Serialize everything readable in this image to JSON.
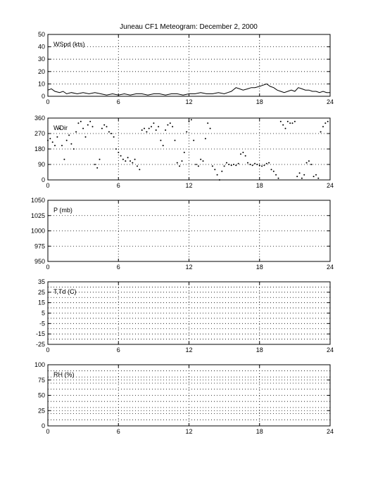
{
  "figure": {
    "title": "Juneau CF1 Meteogram:  December  2, 2000"
  },
  "chart_data": [
    {
      "type": "line",
      "label": "WSpd (kts)",
      "xlim": [
        0,
        24
      ],
      "ylim": [
        0,
        50
      ],
      "xticks": [
        0,
        6,
        12,
        18,
        24
      ],
      "yticks": [
        0,
        10,
        20,
        30,
        40,
        50
      ],
      "grid": true,
      "series": [
        {
          "color": "#000000",
          "x": [
            0,
            0.3,
            0.6,
            1,
            1.3,
            1.6,
            2,
            2.5,
            3,
            3.5,
            4,
            4.5,
            5,
            5.5,
            6,
            6.5,
            7,
            7.5,
            8,
            8.5,
            9,
            9.5,
            10,
            10.5,
            11,
            11.5,
            12,
            12.5,
            13,
            13.5,
            14,
            14.5,
            15,
            15.3,
            15.6,
            16,
            16.3,
            16.6,
            17,
            17.3,
            17.6,
            18,
            18.3,
            18.6,
            18.9,
            19.2,
            19.5,
            19.8,
            20.1,
            20.4,
            20.7,
            21,
            21.3,
            21.6,
            21.9,
            22.2,
            22.5,
            22.8,
            23.1,
            23.4,
            23.7,
            24
          ],
          "y": [
            5,
            6,
            4,
            3,
            4,
            2,
            3,
            2,
            3,
            2,
            3,
            2,
            1,
            2,
            1,
            2,
            1,
            2,
            2,
            1,
            2,
            2,
            1,
            2,
            2,
            1,
            2,
            2,
            3,
            2,
            2,
            3,
            2,
            3,
            4,
            7,
            6,
            5,
            6,
            7,
            7,
            8,
            9,
            10,
            8,
            7,
            5,
            4,
            3,
            4,
            5,
            4,
            7,
            6,
            5,
            5,
            4,
            4,
            3,
            4,
            3,
            3
          ]
        }
      ]
    },
    {
      "type": "scatter",
      "label": "WDir",
      "xlim": [
        0,
        24
      ],
      "ylim": [
        0,
        360
      ],
      "xticks": [
        0,
        6,
        12,
        18,
        24
      ],
      "yticks": [
        0,
        90,
        180,
        270,
        360
      ],
      "grid": true,
      "series": [
        {
          "color": "#000000",
          "x": [
            0.0,
            0.2,
            0.4,
            0.6,
            0.8,
            1.0,
            1.2,
            1.4,
            1.6,
            1.8,
            2.0,
            2.2,
            2.4,
            2.6,
            2.8,
            3.0,
            3.2,
            3.4,
            3.6,
            3.8,
            4.0,
            4.2,
            4.4,
            4.6,
            4.8,
            5.0,
            5.2,
            5.4,
            5.6,
            5.8,
            6.0,
            6.2,
            6.4,
            6.6,
            6.8,
            7.0,
            7.2,
            7.4,
            7.6,
            7.8,
            8.0,
            8.2,
            8.4,
            8.6,
            8.8,
            9.0,
            9.2,
            9.4,
            9.6,
            9.8,
            10.0,
            10.2,
            10.4,
            10.6,
            10.8,
            11.0,
            11.2,
            11.4,
            11.6,
            11.8,
            12.0,
            12.2,
            12.4,
            12.6,
            12.8,
            13.0,
            13.2,
            13.4,
            13.6,
            13.8,
            14.0,
            14.2,
            14.4,
            14.6,
            14.8,
            15.0,
            15.2,
            15.4,
            15.6,
            15.8,
            16.0,
            16.2,
            16.4,
            16.6,
            16.8,
            17.0,
            17.2,
            17.4,
            17.6,
            17.8,
            18.0,
            18.2,
            18.4,
            18.6,
            18.8,
            19.0,
            19.2,
            19.4,
            19.6,
            19.8,
            20.0,
            20.2,
            20.4,
            20.6,
            20.8,
            21.0,
            21.2,
            21.4,
            21.6,
            21.8,
            22.0,
            22.2,
            22.4,
            22.6,
            22.8,
            23.0,
            23.2,
            23.4,
            23.6,
            23.8
          ],
          "y": [
            230,
            240,
            220,
            200,
            250,
            300,
            200,
            120,
            230,
            260,
            210,
            180,
            280,
            330,
            340,
            300,
            250,
            320,
            340,
            310,
            90,
            70,
            120,
            300,
            320,
            310,
            280,
            270,
            250,
            180,
            160,
            140,
            120,
            110,
            130,
            110,
            100,
            120,
            80,
            60,
            290,
            300,
            280,
            300,
            310,
            330,
            290,
            310,
            230,
            200,
            290,
            320,
            330,
            310,
            230,
            100,
            80,
            110,
            160,
            280,
            340,
            350,
            230,
            90,
            80,
            120,
            110,
            240,
            330,
            300,
            80,
            60,
            30,
            0,
            50,
            80,
            100,
            90,
            85,
            90,
            85,
            95,
            150,
            160,
            140,
            100,
            90,
            85,
            95,
            90,
            85,
            80,
            85,
            95,
            100,
            60,
            50,
            30,
            10,
            340,
            320,
            300,
            340,
            330,
            330,
            340,
            20,
            40,
            10,
            30,
            100,
            110,
            90,
            20,
            30,
            10,
            280,
            310,
            330,
            340
          ]
        }
      ]
    },
    {
      "type": "line",
      "label": "P (mb)",
      "xlim": [
        0,
        24
      ],
      "ylim": [
        950,
        1050
      ],
      "xticks": [
        0,
        6,
        12,
        18,
        24
      ],
      "yticks": [
        950,
        975,
        1000,
        1025,
        1050
      ],
      "grid": true,
      "series": []
    },
    {
      "type": "line",
      "label": "T,Td (C)",
      "xlim": [
        0,
        24
      ],
      "ylim": [
        -25,
        35
      ],
      "xticks": [
        0,
        6,
        12,
        18,
        24
      ],
      "yticks": [
        -25,
        -15,
        -5,
        5,
        15,
        25,
        35
      ],
      "extra_yticks": [
        -20,
        -10,
        0,
        10,
        20,
        30
      ],
      "grid": true,
      "series": []
    },
    {
      "type": "line",
      "label": "RH (%)",
      "xlim": [
        0,
        24
      ],
      "ylim": [
        0,
        100
      ],
      "xticks": [
        0,
        6,
        12,
        18,
        24
      ],
      "yticks": [
        0,
        25,
        50,
        75,
        100
      ],
      "extra_yticks": [
        10,
        20,
        30,
        40,
        60,
        70,
        80,
        90
      ],
      "grid": true,
      "series": []
    }
  ]
}
